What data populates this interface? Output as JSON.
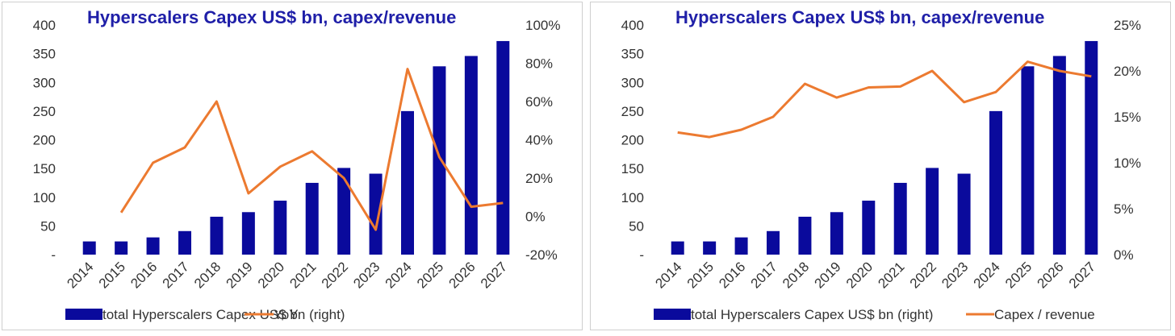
{
  "colors": {
    "bar": "#0a0a9c",
    "line": "#ec7a30",
    "title": "#1f1fa8",
    "text": "#333333"
  },
  "chart_data": [
    {
      "type": "bar",
      "title": "Hyperscalers Capex US$ bn, capex/revenue",
      "categories": [
        "2014",
        "2015",
        "2016",
        "2017",
        "2018",
        "2019",
        "2020",
        "2021",
        "2022",
        "2023",
        "2024",
        "2025",
        "2026",
        "2027"
      ],
      "left_axis": {
        "ylim": [
          0,
          400
        ],
        "ticks": [
          0,
          50,
          100,
          150,
          200,
          250,
          300,
          350,
          400
        ],
        "tick_labels": [
          "-",
          "50",
          "100",
          "150",
          "200",
          "250",
          "300",
          "350",
          "400"
        ]
      },
      "right_axis": {
        "ylim": [
          -20,
          100
        ],
        "ticks": [
          -20,
          0,
          20,
          40,
          60,
          80,
          100
        ],
        "tick_labels": [
          "-20%",
          "0%",
          "20%",
          "40%",
          "60%",
          "80%",
          "100%"
        ]
      },
      "series": [
        {
          "name": "total Hyperscalers Capex US$ bn (right)",
          "type": "bar",
          "axis": "left",
          "values": [
            23,
            23,
            30,
            41,
            66,
            74,
            94,
            125,
            151,
            141,
            250,
            328,
            346,
            372
          ]
        },
        {
          "name": "YoY",
          "type": "line",
          "axis": "right",
          "values": [
            null,
            2,
            28,
            36,
            60,
            12,
            26,
            34,
            20,
            -7,
            77,
            31,
            5,
            7
          ]
        }
      ]
    },
    {
      "type": "bar",
      "title": "Hyperscalers Capex US$ bn, capex/revenue",
      "categories": [
        "2014",
        "2015",
        "2016",
        "2017",
        "2018",
        "2019",
        "2020",
        "2021",
        "2022",
        "2023",
        "2024",
        "2025",
        "2026",
        "2027"
      ],
      "left_axis": {
        "ylim": [
          0,
          400
        ],
        "ticks": [
          0,
          50,
          100,
          150,
          200,
          250,
          300,
          350,
          400
        ],
        "tick_labels": [
          "-",
          "50",
          "100",
          "150",
          "200",
          "250",
          "300",
          "350",
          "400"
        ]
      },
      "right_axis": {
        "ylim": [
          0,
          25
        ],
        "ticks": [
          0,
          5,
          10,
          15,
          20,
          25
        ],
        "tick_labels": [
          "0%",
          "5%",
          "10%",
          "15%",
          "20%",
          "25%"
        ]
      },
      "series": [
        {
          "name": "total Hyperscalers Capex US$ bn (right)",
          "type": "bar",
          "axis": "left",
          "values": [
            23,
            23,
            30,
            41,
            66,
            74,
            94,
            125,
            151,
            141,
            250,
            328,
            346,
            372
          ]
        },
        {
          "name": "Capex / revenue",
          "type": "line",
          "axis": "right",
          "values": [
            13.3,
            12.8,
            13.6,
            15.0,
            18.6,
            17.1,
            18.2,
            18.3,
            20.0,
            16.6,
            17.7,
            21.0,
            20.0,
            19.4
          ]
        }
      ]
    }
  ]
}
